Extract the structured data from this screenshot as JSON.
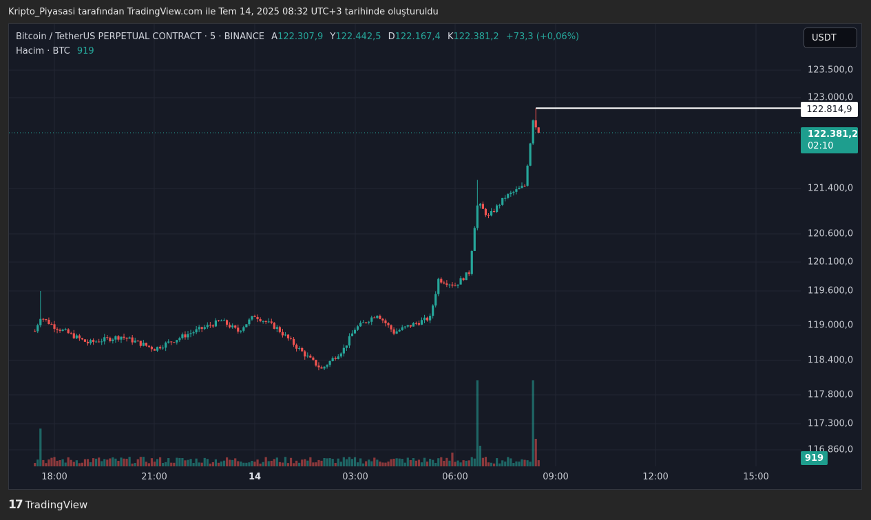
{
  "caption": "Kripto_Piyasasi tarafından TradingView.com ile Tem 14, 2025 08:32 UTC+3 tarihinde oluşturuldu",
  "legend": {
    "symbol": "Bitcoin / TetherUS PERPETUAL CONTRACT · 5 · BINANCE",
    "open_label": "A",
    "open": "122.307,9",
    "high_label": "Y",
    "high": "122.442,5",
    "low_label": "D",
    "low": "122.167,4",
    "close_label": "K",
    "close": "122.381,2",
    "change": "+73,3 (+0,06%)",
    "volume_label": "Hacim · BTC",
    "volume_value": "919"
  },
  "currency_button": "USDT",
  "price_scale": [
    "123.500,0",
    "123.000,0",
    "121.400,0",
    "120.600,0",
    "120.100,0",
    "119.600,0",
    "119.000,0",
    "118.400,0",
    "117.800,0",
    "117.300,0",
    "116.860,0"
  ],
  "time_scale": [
    {
      "label": "18:00",
      "bold": false
    },
    {
      "label": "21:00",
      "bold": false
    },
    {
      "label": "14",
      "bold": true
    },
    {
      "label": "03:00",
      "bold": false
    },
    {
      "label": "06:00",
      "bold": false
    },
    {
      "label": "09:00",
      "bold": false
    },
    {
      "label": "12:00",
      "bold": false
    },
    {
      "label": "15:00",
      "bold": false
    }
  ],
  "high_marker": "122.814,9",
  "last_price": {
    "price": "122.381,2",
    "countdown": "02:10"
  },
  "volume_marker": "919",
  "brand": {
    "logo": "17",
    "name": "TradingView"
  },
  "colors": {
    "background": "#161a25",
    "up": "#26a69a",
    "down": "#ef5350",
    "grid": "#232632"
  },
  "chart_data": {
    "type": "candlestick",
    "series_name": "Bitcoin / TetherUS PERPETUAL CONTRACT",
    "interval": "5",
    "price_range": [
      116500,
      124200
    ],
    "price_anchors": [
      {
        "time": "17:25",
        "price": 118900
      },
      {
        "time": "17:35",
        "price": 119150
      },
      {
        "time": "18:00",
        "price": 118980
      },
      {
        "time": "19:00",
        "price": 118700
      },
      {
        "time": "20:00",
        "price": 118810
      },
      {
        "time": "21:00",
        "price": 118600
      },
      {
        "time": "22:00",
        "price": 118850
      },
      {
        "time": "23:00",
        "price": 119080
      },
      {
        "time": "23:30",
        "price": 118900
      },
      {
        "time": "00:00",
        "price": 119170
      },
      {
        "time": "00:40",
        "price": 118950
      },
      {
        "time": "01:30",
        "price": 118500
      },
      {
        "time": "02:00",
        "price": 118250
      },
      {
        "time": "02:40",
        "price": 118600
      },
      {
        "time": "03:00",
        "price": 118940
      },
      {
        "time": "03:40",
        "price": 119200
      },
      {
        "time": "04:10",
        "price": 118880
      },
      {
        "time": "04:40",
        "price": 119000
      },
      {
        "time": "05:15",
        "price": 119130
      },
      {
        "time": "05:30",
        "price": 119800
      },
      {
        "time": "06:00",
        "price": 119700
      },
      {
        "time": "06:25",
        "price": 119920
      },
      {
        "time": "06:40",
        "price": 121150
      },
      {
        "time": "07:00",
        "price": 120900
      },
      {
        "time": "07:30",
        "price": 121250
      },
      {
        "time": "08:05",
        "price": 121450
      },
      {
        "time": "08:20",
        "price": 122600
      },
      {
        "time": "08:30",
        "price": 122381.2
      }
    ],
    "session_high": 122814.9,
    "volume_peaks": [
      {
        "time": "17:35",
        "volume": "high"
      },
      {
        "time": "05:55",
        "volume": "medium"
      },
      {
        "time": "06:40",
        "volume": "very high"
      },
      {
        "time": "08:20",
        "volume": "very high"
      }
    ],
    "last_volume": "919"
  }
}
